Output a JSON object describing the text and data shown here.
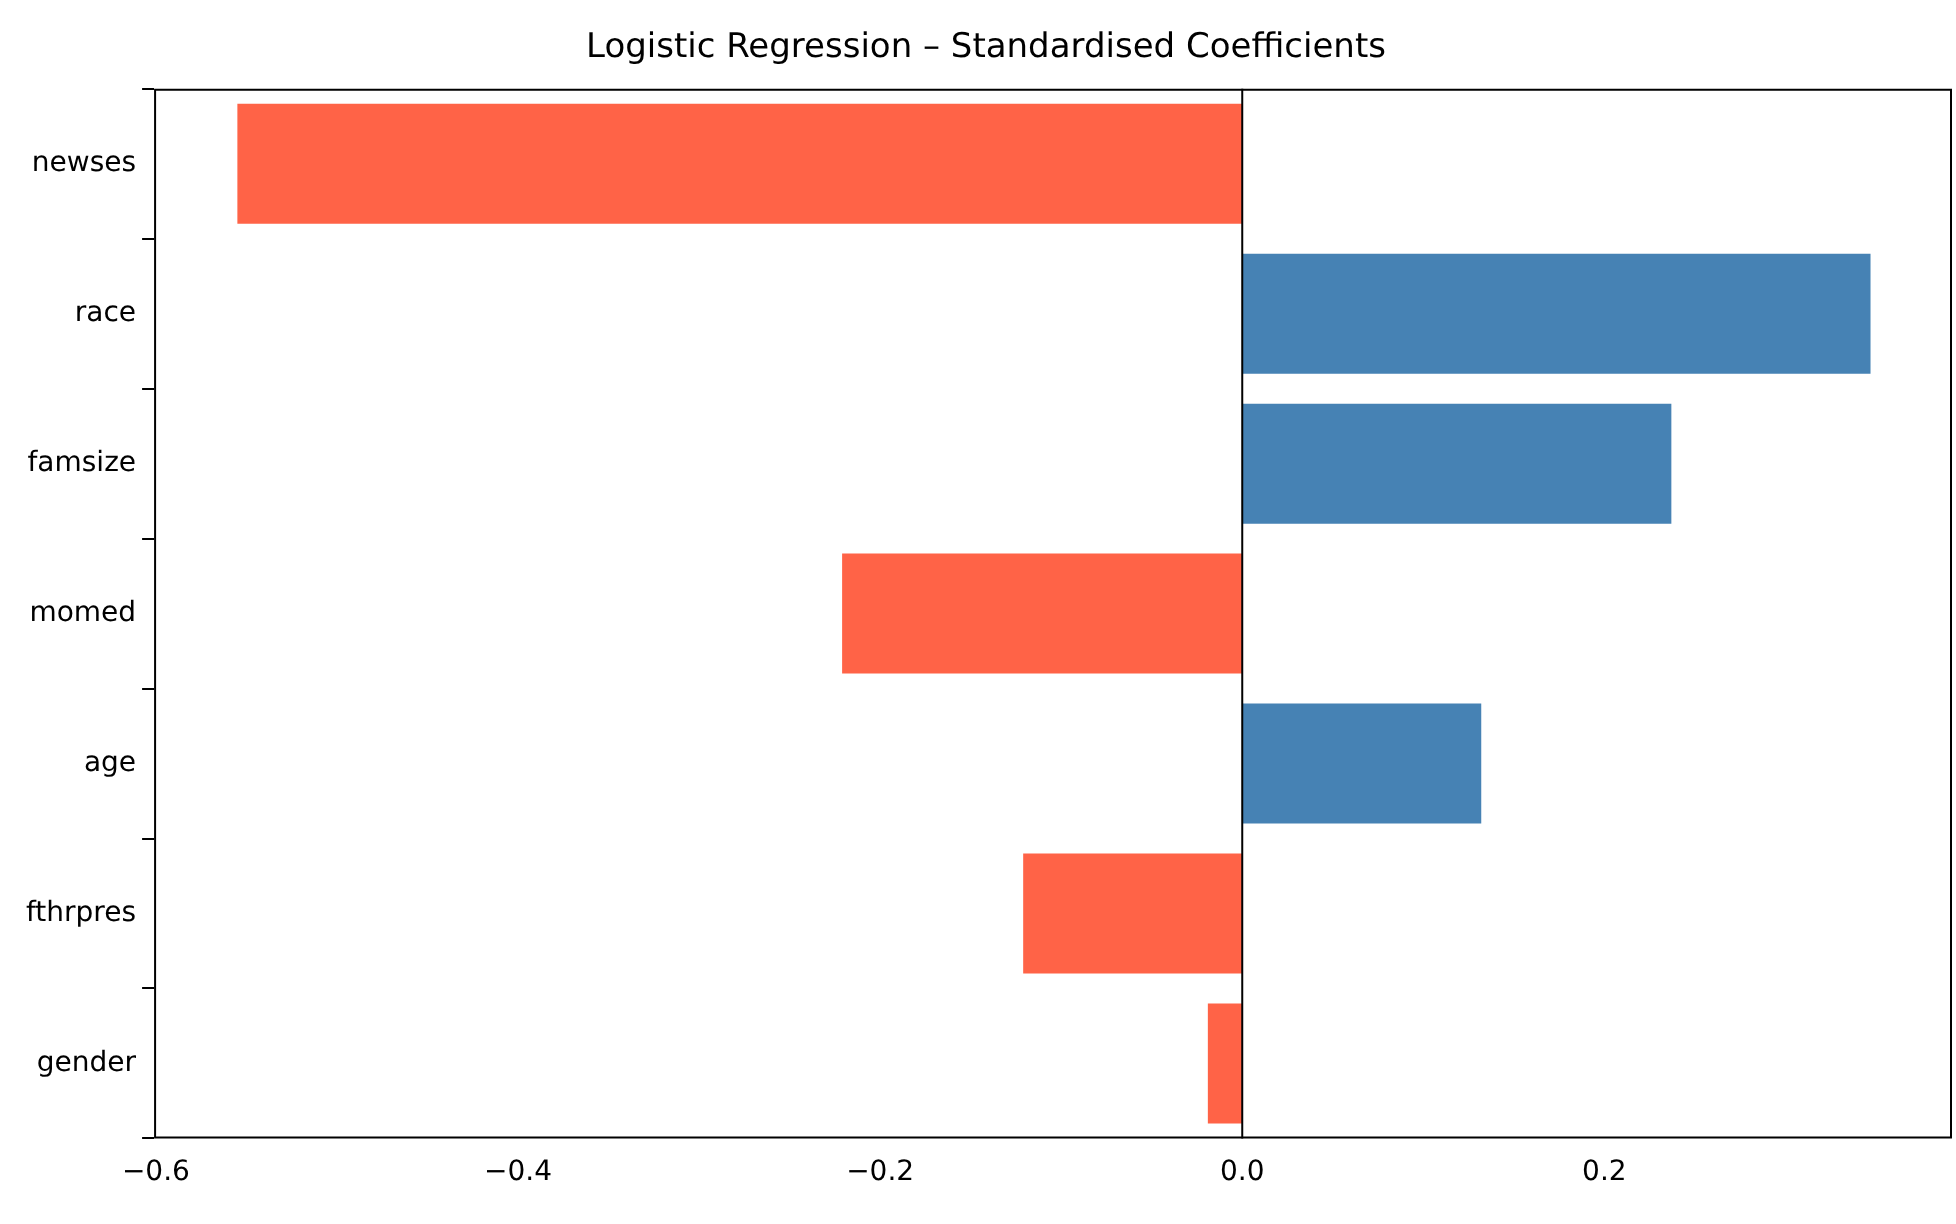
{
  "chart_data": {
    "type": "bar",
    "orientation": "horizontal",
    "title": "Logistic Regression – Standardised Coefficients",
    "categories": [
      "newses",
      "race",
      "famsize",
      "momed",
      "age",
      "fthrpres",
      "gender"
    ],
    "values": [
      -0.555,
      0.347,
      0.237,
      -0.221,
      0.132,
      -0.121,
      -0.019
    ],
    "colors": [
      "#ff6347",
      "#4682b4",
      "#4682b4",
      "#ff6347",
      "#4682b4",
      "#ff6347",
      "#ff6347"
    ],
    "xlim": [
      -0.601,
      0.392
    ],
    "xticks": [
      {
        "value": -0.6,
        "label": "−0.6"
      },
      {
        "value": -0.4,
        "label": "−0.4"
      },
      {
        "value": -0.2,
        "label": "−0.2"
      },
      {
        "value": 0,
        "label": "0.0"
      },
      {
        "value": 0.2,
        "label": "0.2"
      }
    ],
    "ref_lines": [
      {
        "axis": "x",
        "value": 0,
        "color": "#000000"
      }
    ],
    "grid": false,
    "legend": false
  }
}
